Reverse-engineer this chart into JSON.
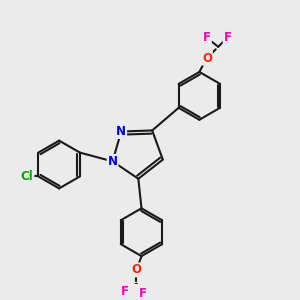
{
  "bg_color": "#ebebeb",
  "bond_color": "#1a1a1a",
  "bond_width": 1.5,
  "atom_colors": {
    "N": "#0000ff",
    "O": "#ff2200",
    "F": "#ff00bb",
    "Cl": "#00aa00",
    "C": "#1a1a1a"
  },
  "font_size_atom": 8.5
}
